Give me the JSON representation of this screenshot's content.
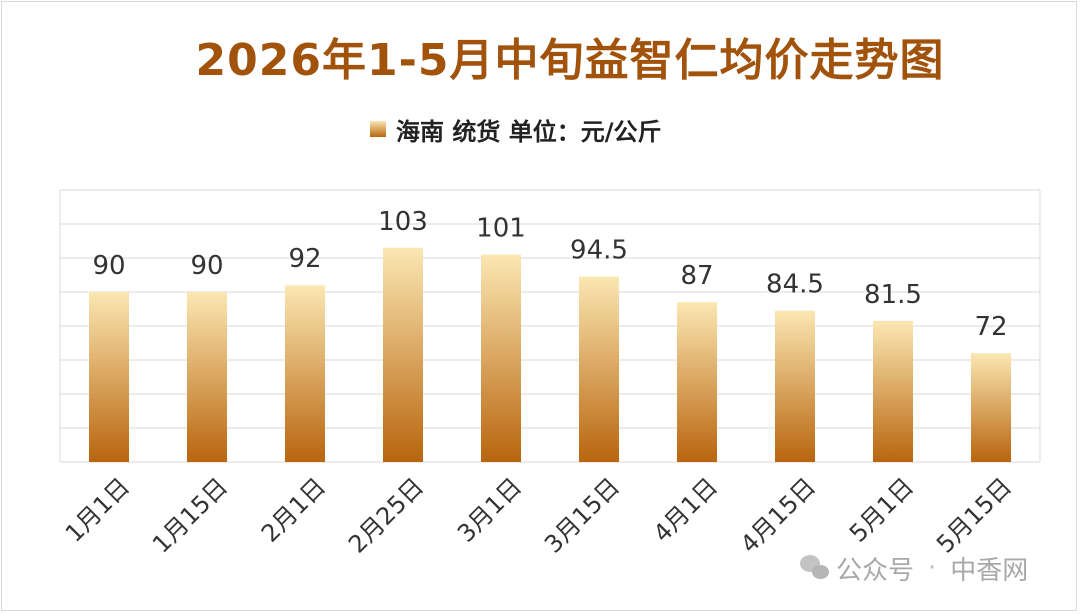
{
  "chart_data": {
    "type": "bar",
    "title": "2026年1-5月中旬益智仁均价走势图",
    "legend": [
      "海南 统货 单位：元/公斤"
    ],
    "legend_position": "top",
    "categories": [
      "1月1日",
      "1月15日",
      "2月1日",
      "2月25日",
      "3月1日",
      "3月15日",
      "4月1日",
      "4月15日",
      "5月1日",
      "5月15日"
    ],
    "series": [
      {
        "name": "海南 统货 单位：元/公斤",
        "values": [
          90,
          90,
          92,
          103,
          101,
          94.5,
          87,
          84.5,
          81.5,
          72
        ]
      }
    ],
    "ylim": [
      40,
      120
    ],
    "grid": true,
    "colors": {
      "bar_top": "#fbe7b2",
      "bar_bottom": "#b8650e",
      "title": "#a1520b",
      "grid": "#d9d9d9"
    }
  },
  "watermark": {
    "icon": "wechat-icon",
    "brand": "公众号",
    "separator": "·",
    "name": "中香网"
  }
}
